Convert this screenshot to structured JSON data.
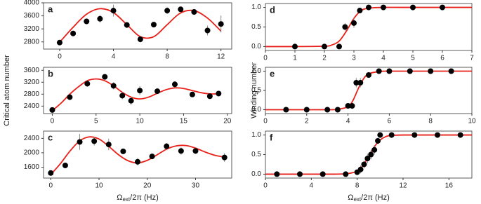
{
  "chart_data": [
    {
      "type": "scatter",
      "label": "a",
      "xlim": [
        -1.2,
        12.8
      ],
      "ylim": [
        2580,
        4000
      ],
      "xticks": [
        0,
        4,
        8,
        12
      ],
      "yticks": [
        2800,
        3200,
        3600,
        4000
      ],
      "points": {
        "color": "#000000",
        "x": [
          0,
          1,
          2,
          3,
          4,
          5,
          6,
          7,
          8,
          9,
          10,
          11,
          12
        ],
        "y": [
          2780,
          3060,
          3430,
          3510,
          3760,
          3320,
          2880,
          3330,
          3760,
          3800,
          3720,
          3150,
          3350
        ],
        "errors": [
          60,
          80,
          90,
          120,
          180,
          90,
          100,
          80,
          100,
          80,
          90,
          150,
          260
        ]
      },
      "fit": {
        "color": "#e8201a",
        "x": [
          0,
          1,
          2,
          3,
          4,
          5,
          6,
          7,
          8,
          9,
          10,
          11,
          12
        ],
        "y": [
          2790,
          3250,
          3650,
          3820,
          3700,
          3330,
          2960,
          2960,
          3330,
          3690,
          3760,
          3530,
          3130
        ]
      }
    },
    {
      "type": "scatter",
      "label": "b",
      "xlim": [
        -1,
        20.5
      ],
      "ylim": [
        2150,
        3700
      ],
      "xticks": [
        0,
        5,
        10,
        15,
        20
      ],
      "yticks": [
        2400,
        2800,
        3200,
        3600
      ],
      "y_label": "Critical atom number",
      "points": {
        "color": "#000000",
        "x": [
          0,
          2,
          4,
          6,
          7,
          8,
          9,
          10,
          12,
          14,
          16,
          18,
          19
        ],
        "y": [
          2270,
          2700,
          3150,
          3380,
          3080,
          2750,
          2580,
          2920,
          2900,
          3130,
          2790,
          2730,
          2820
        ],
        "errors": [
          80,
          70,
          100,
          90,
          120,
          120,
          140,
          150,
          80,
          100,
          70,
          90,
          80
        ]
      },
      "fit": {
        "color": "#e8201a",
        "x": [
          0,
          1,
          2,
          3,
          4,
          5,
          6,
          7,
          8,
          9,
          10,
          11,
          12,
          13,
          14,
          15,
          16,
          17,
          18,
          19
        ],
        "y": [
          2250,
          2500,
          2800,
          3050,
          3250,
          3310,
          3250,
          3080,
          2860,
          2700,
          2640,
          2700,
          2830,
          2950,
          3010,
          2990,
          2920,
          2850,
          2810,
          2810
        ]
      }
    },
    {
      "type": "scatter",
      "label": "c",
      "xlim": [
        -1.5,
        37.5
      ],
      "ylim": [
        1300,
        2600
      ],
      "xticks": [
        0,
        10,
        20,
        30
      ],
      "yticks": [
        1600,
        2000,
        2400
      ],
      "x_label": [
        "Ω",
        "ext",
        "/2π (Hz)"
      ],
      "points": {
        "color": "#000000",
        "x": [
          0,
          3,
          6,
          9,
          12,
          15,
          18,
          21,
          24,
          27,
          30,
          36
        ],
        "y": [
          1440,
          1650,
          2300,
          2320,
          2230,
          2040,
          1750,
          1900,
          2180,
          2050,
          2050,
          1870
        ],
        "errors": [
          40,
          60,
          220,
          120,
          160,
          60,
          100,
          80,
          90,
          100,
          80,
          120
        ]
      },
      "fit": {
        "color": "#e8201a",
        "x": [
          0,
          2,
          4,
          6,
          8,
          10,
          12,
          14,
          16,
          18,
          20,
          22,
          24,
          26,
          28,
          30,
          32,
          34,
          36
        ],
        "y": [
          1400,
          1700,
          2050,
          2330,
          2440,
          2380,
          2180,
          1950,
          1780,
          1720,
          1790,
          1940,
          2100,
          2190,
          2200,
          2130,
          2020,
          1930,
          1880
        ]
      }
    },
    {
      "type": "scatter",
      "label": "d",
      "xlim": [
        0,
        7
      ],
      "ylim": [
        -0.1,
        1.1
      ],
      "xticks": [
        0,
        1,
        2,
        3,
        4,
        5,
        6,
        7
      ],
      "yticks": [
        {
          "value": 0,
          "label": "0.0"
        },
        {
          "value": 0.5,
          "label": "0.5"
        },
        {
          "value": 1,
          "label": "1.0"
        }
      ],
      "points": {
        "color": "#000000",
        "x": [
          1,
          2,
          2.5,
          2.7,
          3,
          3.2,
          3.5,
          4,
          5,
          6
        ],
        "y": [
          0,
          0,
          0,
          0.5,
          0.6,
          0.92,
          1,
          1,
          1,
          1
        ],
        "errors": [
          0,
          0,
          0,
          0.1,
          0.12,
          0.05,
          0,
          0,
          0,
          0
        ]
      },
      "fit": {
        "color": "#e8201a",
        "x": [
          0,
          1,
          2,
          2.25,
          2.5,
          2.75,
          3,
          3.25,
          3.5,
          4,
          5,
          6,
          7
        ],
        "y": [
          0,
          0,
          0.01,
          0.04,
          0.14,
          0.4,
          0.72,
          0.92,
          0.98,
          1,
          1,
          1,
          1
        ]
      }
    },
    {
      "type": "scatter",
      "label": "e",
      "xlim": [
        0,
        10
      ],
      "ylim": [
        -0.1,
        1.1
      ],
      "xticks": [
        0,
        2,
        4,
        6,
        8,
        10
      ],
      "yticks": [
        {
          "value": 0,
          "label": "0.0"
        },
        {
          "value": 0.5,
          "label": "0.5"
        },
        {
          "value": 1,
          "label": "1.0"
        }
      ],
      "y_label": "Winding number",
      "points": {
        "color": "#000000",
        "x": [
          1,
          2,
          3,
          3.5,
          4,
          4.2,
          4.4,
          4.6,
          5,
          5.5,
          6,
          7,
          8,
          9
        ],
        "y": [
          0,
          0,
          0,
          0,
          0.1,
          0.1,
          0.7,
          0.7,
          0.9,
          1,
          1,
          1,
          1,
          1
        ],
        "errors": [
          0,
          0,
          0,
          0,
          0.06,
          0.08,
          0.12,
          0.12,
          0.05,
          0,
          0,
          0,
          0,
          0
        ]
      },
      "fit": {
        "color": "#e8201a",
        "x": [
          0,
          2,
          3,
          3.5,
          4,
          4.25,
          4.5,
          4.75,
          5,
          5.5,
          6,
          8,
          10
        ],
        "y": [
          0,
          0,
          0,
          0.01,
          0.08,
          0.25,
          0.55,
          0.8,
          0.93,
          0.99,
          1,
          1,
          1
        ]
      }
    },
    {
      "type": "scatter",
      "label": "f",
      "xlim": [
        0,
        18
      ],
      "ylim": [
        -0.1,
        1.1
      ],
      "xticks": [
        0,
        4,
        8,
        12,
        16
      ],
      "yticks": [
        {
          "value": 0,
          "label": "0.0"
        },
        {
          "value": 0.5,
          "label": "0.5"
        },
        {
          "value": 1,
          "label": "1.0"
        }
      ],
      "x_label": [
        "Ω",
        "ext",
        "/2π (Hz)"
      ],
      "points": {
        "color": "#000000",
        "x": [
          1,
          3,
          5,
          7,
          8,
          8.3,
          8.6,
          8.9,
          9.2,
          9.5,
          9.8,
          10,
          11,
          13,
          15,
          17
        ],
        "y": [
          0,
          0,
          0,
          0,
          0.05,
          0.12,
          0.25,
          0.4,
          0.5,
          0.62,
          0.85,
          1,
          1,
          1,
          1,
          1
        ],
        "errors": [
          0,
          0,
          0,
          0,
          0.06,
          0.1,
          0.1,
          0.12,
          0.12,
          0.12,
          0.08,
          0,
          0,
          0,
          0,
          0
        ]
      },
      "fit": {
        "color": "#e8201a",
        "x": [
          0,
          4,
          6,
          7,
          7.5,
          8,
          8.5,
          9,
          9.5,
          10,
          10.5,
          11,
          12,
          14,
          16,
          18
        ],
        "y": [
          0,
          0,
          0,
          0.01,
          0.03,
          0.08,
          0.22,
          0.45,
          0.7,
          0.87,
          0.96,
          0.99,
          1,
          1,
          1,
          1
        ]
      }
    }
  ]
}
